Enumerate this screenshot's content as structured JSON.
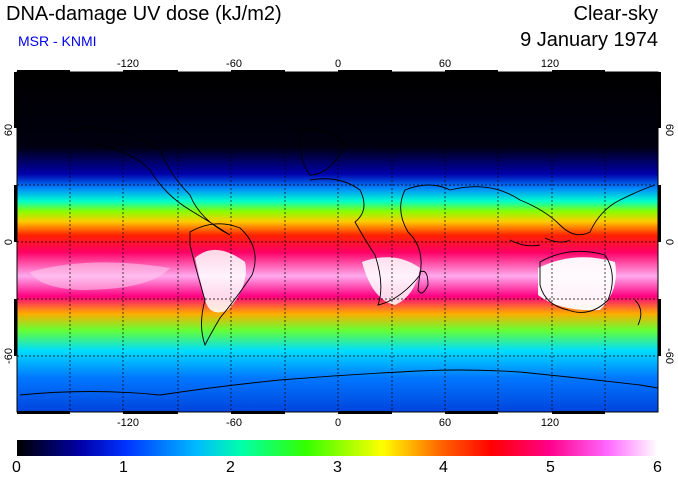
{
  "header": {
    "title": "DNA-damage UV dose (kJ/m2)",
    "source": "MSR - KNMI",
    "sky_condition": "Clear-sky",
    "date": "9 January 1974"
  },
  "map": {
    "longitude_ticks": [
      "-120",
      "-60",
      "0",
      "60",
      "120"
    ],
    "latitude_ticks": [
      "60",
      "0",
      "-60"
    ],
    "colors": {
      "polar_night": "#000000",
      "ocean_low": "#0033ff",
      "mid": "#00ff66",
      "high": "#ff0044",
      "peak": "#ffffff"
    }
  },
  "colorbar": {
    "labels": [
      "0",
      "1",
      "2",
      "3",
      "4",
      "5",
      "6"
    ],
    "min": 0,
    "max": 6
  }
}
